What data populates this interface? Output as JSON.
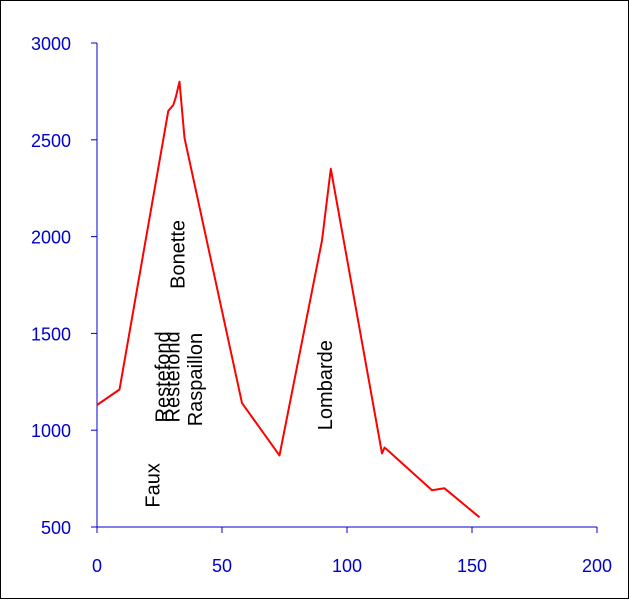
{
  "chart_data": {
    "type": "line",
    "title": "",
    "xlabel": "",
    "ylabel": "",
    "xlim": [
      0,
      200
    ],
    "ylim": [
      500,
      3000
    ],
    "xticks": [
      0,
      50,
      100,
      150,
      200
    ],
    "yticks": [
      500,
      1000,
      1500,
      2000,
      2500,
      3000
    ],
    "grid": false,
    "legend": "none",
    "series": [
      {
        "x": [
          0,
          9,
          28.5,
          30.5,
          31.5,
          33,
          35,
          58,
          73,
          90,
          93.5,
          114,
          115,
          116,
          134,
          139,
          153
        ],
        "y": [
          1130,
          1210,
          2650,
          2680,
          2720,
          2800,
          2510,
          1140,
          870,
          1980,
          2350,
          880,
          910,
          900,
          690,
          700,
          550
        ],
        "color": "#ff0000"
      }
    ],
    "annotations": [
      {
        "text": "Faux",
        "x": 25,
        "y": 600
      },
      {
        "text": "Restefond",
        "x": 29,
        "y": 1040
      },
      {
        "text": "Restefond",
        "x": 33,
        "y": 1040
      },
      {
        "text": "Bonette",
        "x": 35,
        "y": 1730
      },
      {
        "text": "Raspaillon",
        "x": 42,
        "y": 1020
      },
      {
        "text": "Lombarde",
        "x": 94,
        "y": 1000
      }
    ],
    "colors": {
      "axis": "#0000cc",
      "tick_text": "#0000cc",
      "line": "#ff0000"
    }
  }
}
